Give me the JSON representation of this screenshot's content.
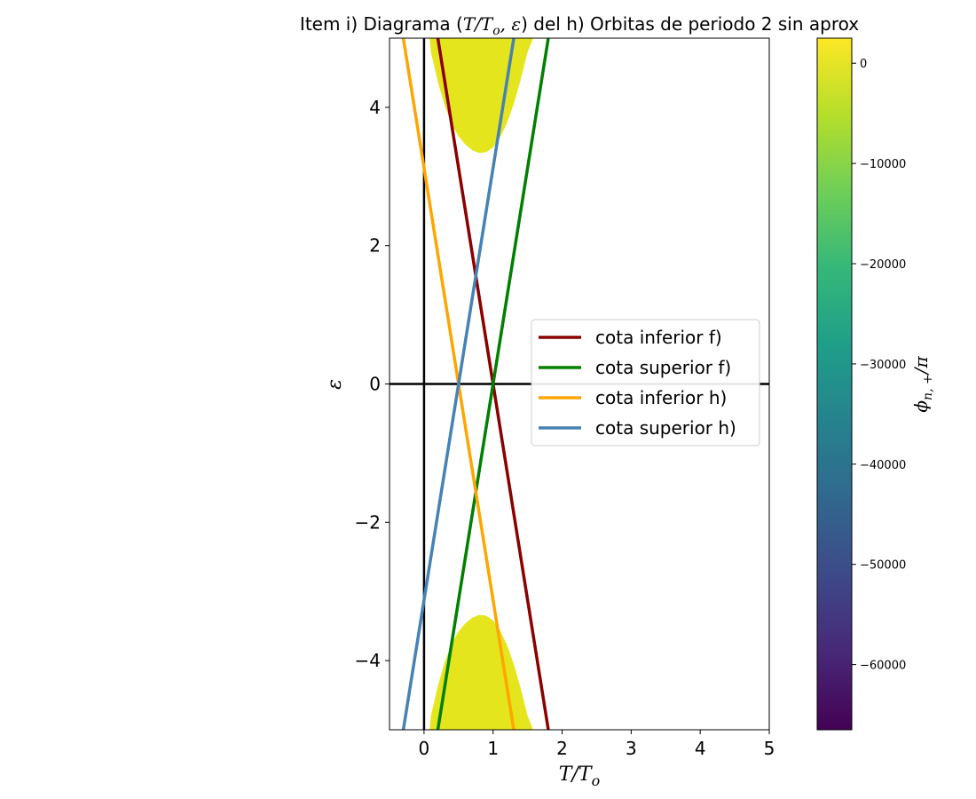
{
  "chart_data": {
    "type": "line",
    "title": {
      "prefix": "Item i) Diagrama (",
      "math": "T/T",
      "math_sub": "o",
      "math_rest": ", ε",
      "suffix": ") del h) Orbitas de periodo 2 sin aprox"
    },
    "xlabel": {
      "main": "T/T",
      "sub": "o"
    },
    "ylabel": "ε",
    "xlim": [
      -0.5,
      5
    ],
    "ylim": [
      -5,
      5
    ],
    "xticks": [
      0,
      1,
      2,
      3,
      4,
      5
    ],
    "yticks": [
      -4,
      -2,
      0,
      2,
      4
    ],
    "xtick_labels": [
      "0",
      "1",
      "2",
      "3",
      "4",
      "5"
    ],
    "ytick_labels": [
      "−4",
      "−2",
      "0",
      "2",
      "4"
    ],
    "reference_lines": {
      "vertical_x": 0,
      "horizontal_y": 0,
      "color": "#000000"
    },
    "series": [
      {
        "name": "cota inferior f)",
        "color": "#8b0000",
        "x": [
          0.2,
          1.8
        ],
        "y": [
          5,
          -5
        ]
      },
      {
        "name": "cota superior f)",
        "color": "#008000",
        "x": [
          0.2,
          1.8
        ],
        "y": [
          -5,
          5
        ]
      },
      {
        "name": "cota inferior h)",
        "color": "#ffa500",
        "x": [
          -0.3,
          1.3
        ],
        "y": [
          5,
          -5
        ]
      },
      {
        "name": "cota superior h)",
        "color": "#4682b4",
        "x": [
          -0.3,
          1.3
        ],
        "y": [
          -5,
          5
        ]
      }
    ],
    "heatmap_regions": {
      "color": "#e4e51c",
      "top": {
        "x": [
          0.08,
          0.1,
          0.2,
          0.3,
          0.4,
          0.5,
          0.6,
          0.7,
          0.8,
          0.9,
          1.0,
          1.1,
          1.2,
          1.3,
          1.4,
          1.5,
          1.58
        ],
        "y": [
          5.0,
          4.8,
          4.37,
          4.02,
          3.76,
          3.58,
          3.46,
          3.38,
          3.34,
          3.35,
          3.42,
          3.56,
          3.77,
          4.05,
          4.4,
          4.8,
          5.0
        ]
      },
      "bottom": {
        "x": [
          0.08,
          0.1,
          0.2,
          0.3,
          0.4,
          0.5,
          0.6,
          0.7,
          0.8,
          0.9,
          1.0,
          1.1,
          1.2,
          1.3,
          1.4,
          1.5,
          1.58
        ],
        "y": [
          -5.0,
          -4.8,
          -4.37,
          -4.02,
          -3.76,
          -3.58,
          -3.46,
          -3.38,
          -3.34,
          -3.35,
          -3.42,
          -3.56,
          -3.77,
          -4.05,
          -4.4,
          -4.8,
          -5.0
        ]
      }
    },
    "legend": {
      "placement": "center-right"
    },
    "colorbar": {
      "label": "ϕ",
      "label_sub": "n, +",
      "label_rest": "/π",
      "range": [
        -66500,
        2500
      ],
      "ticks": [
        0,
        -10000,
        -20000,
        -30000,
        -40000,
        -50000,
        -60000
      ],
      "tick_labels": [
        "0",
        "−10000",
        "−20000",
        "−30000",
        "−40000",
        "−50000",
        "−60000"
      ],
      "colormap": [
        "#440154",
        "#482878",
        "#3e4989",
        "#31688e",
        "#26828e",
        "#1f9e89",
        "#35b779",
        "#6ece58",
        "#b5de2b",
        "#fde725"
      ]
    }
  }
}
